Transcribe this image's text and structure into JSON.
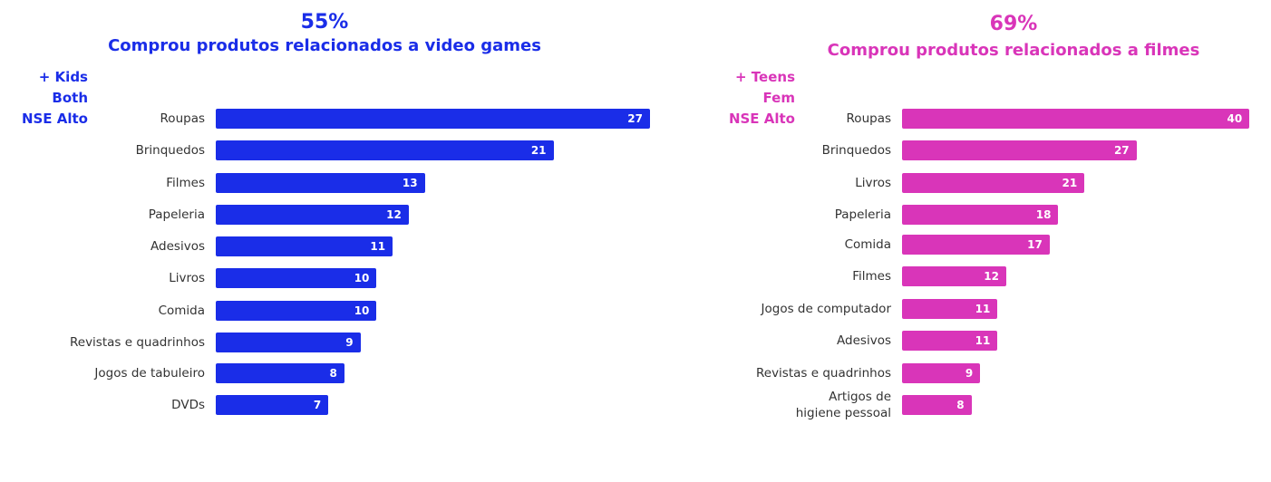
{
  "chart_data": [
    {
      "type": "bar",
      "orientation": "horizontal",
      "title": "55%",
      "subtitle": "Comprou produtos relacionados a video games",
      "annotations": [
        "+ Kids",
        "Both",
        "NSE Alto"
      ],
      "categories": [
        "Roupas",
        "Brinquedos",
        "Filmes",
        "Papeleria",
        "Adesivos",
        "Livros",
        "Comida",
        "Revistas e quadrinhos",
        "Jogos de tabuleiro",
        "DVDs"
      ],
      "values": [
        27,
        21,
        13,
        12,
        11,
        10,
        10,
        9,
        8,
        7
      ],
      "color": "#1a2de8"
    },
    {
      "type": "bar",
      "orientation": "horizontal",
      "title": "69%",
      "subtitle": "Comprou produtos relacionados a filmes",
      "annotations": [
        "+ Teens",
        "Fem",
        "NSE Alto"
      ],
      "categories": [
        "Roupas",
        "Brinquedos",
        "Livros",
        "Papeleria",
        "Comida",
        "Filmes",
        "Jogos de computador",
        "Adesivos",
        "Revistas e quadrinhos",
        "Artigos de\nhigiene pessoal"
      ],
      "values": [
        40,
        27,
        21,
        18,
        17,
        12,
        11,
        11,
        9,
        8
      ],
      "color": "#d935b9"
    }
  ]
}
